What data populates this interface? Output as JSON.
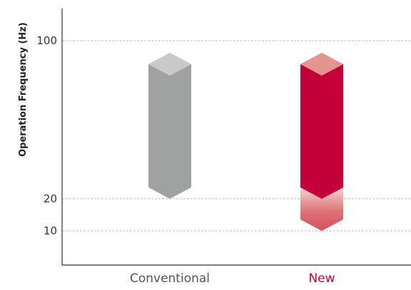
{
  "chart_data": {
    "type": "range-bar",
    "ylabel": "Operation Frequency (Hz)",
    "yticks": [
      10,
      20,
      100
    ],
    "ylim": [
      0,
      110
    ],
    "grid": "dashed horizontal at ticks",
    "categories": [
      "Conventional",
      "New"
    ],
    "series": [
      {
        "category": "Conventional",
        "low": 20,
        "high": 98,
        "color": "#a0a2a1",
        "cap_color": "#c9c9c9",
        "label_color": "#555555"
      },
      {
        "category": "New",
        "low": 10,
        "high": 98,
        "color": "#c4003a",
        "cap_color": "#e4958e",
        "low_extension_from": 20,
        "ext_color": "#d8626a",
        "label_color": "#c4003a"
      }
    ]
  }
}
